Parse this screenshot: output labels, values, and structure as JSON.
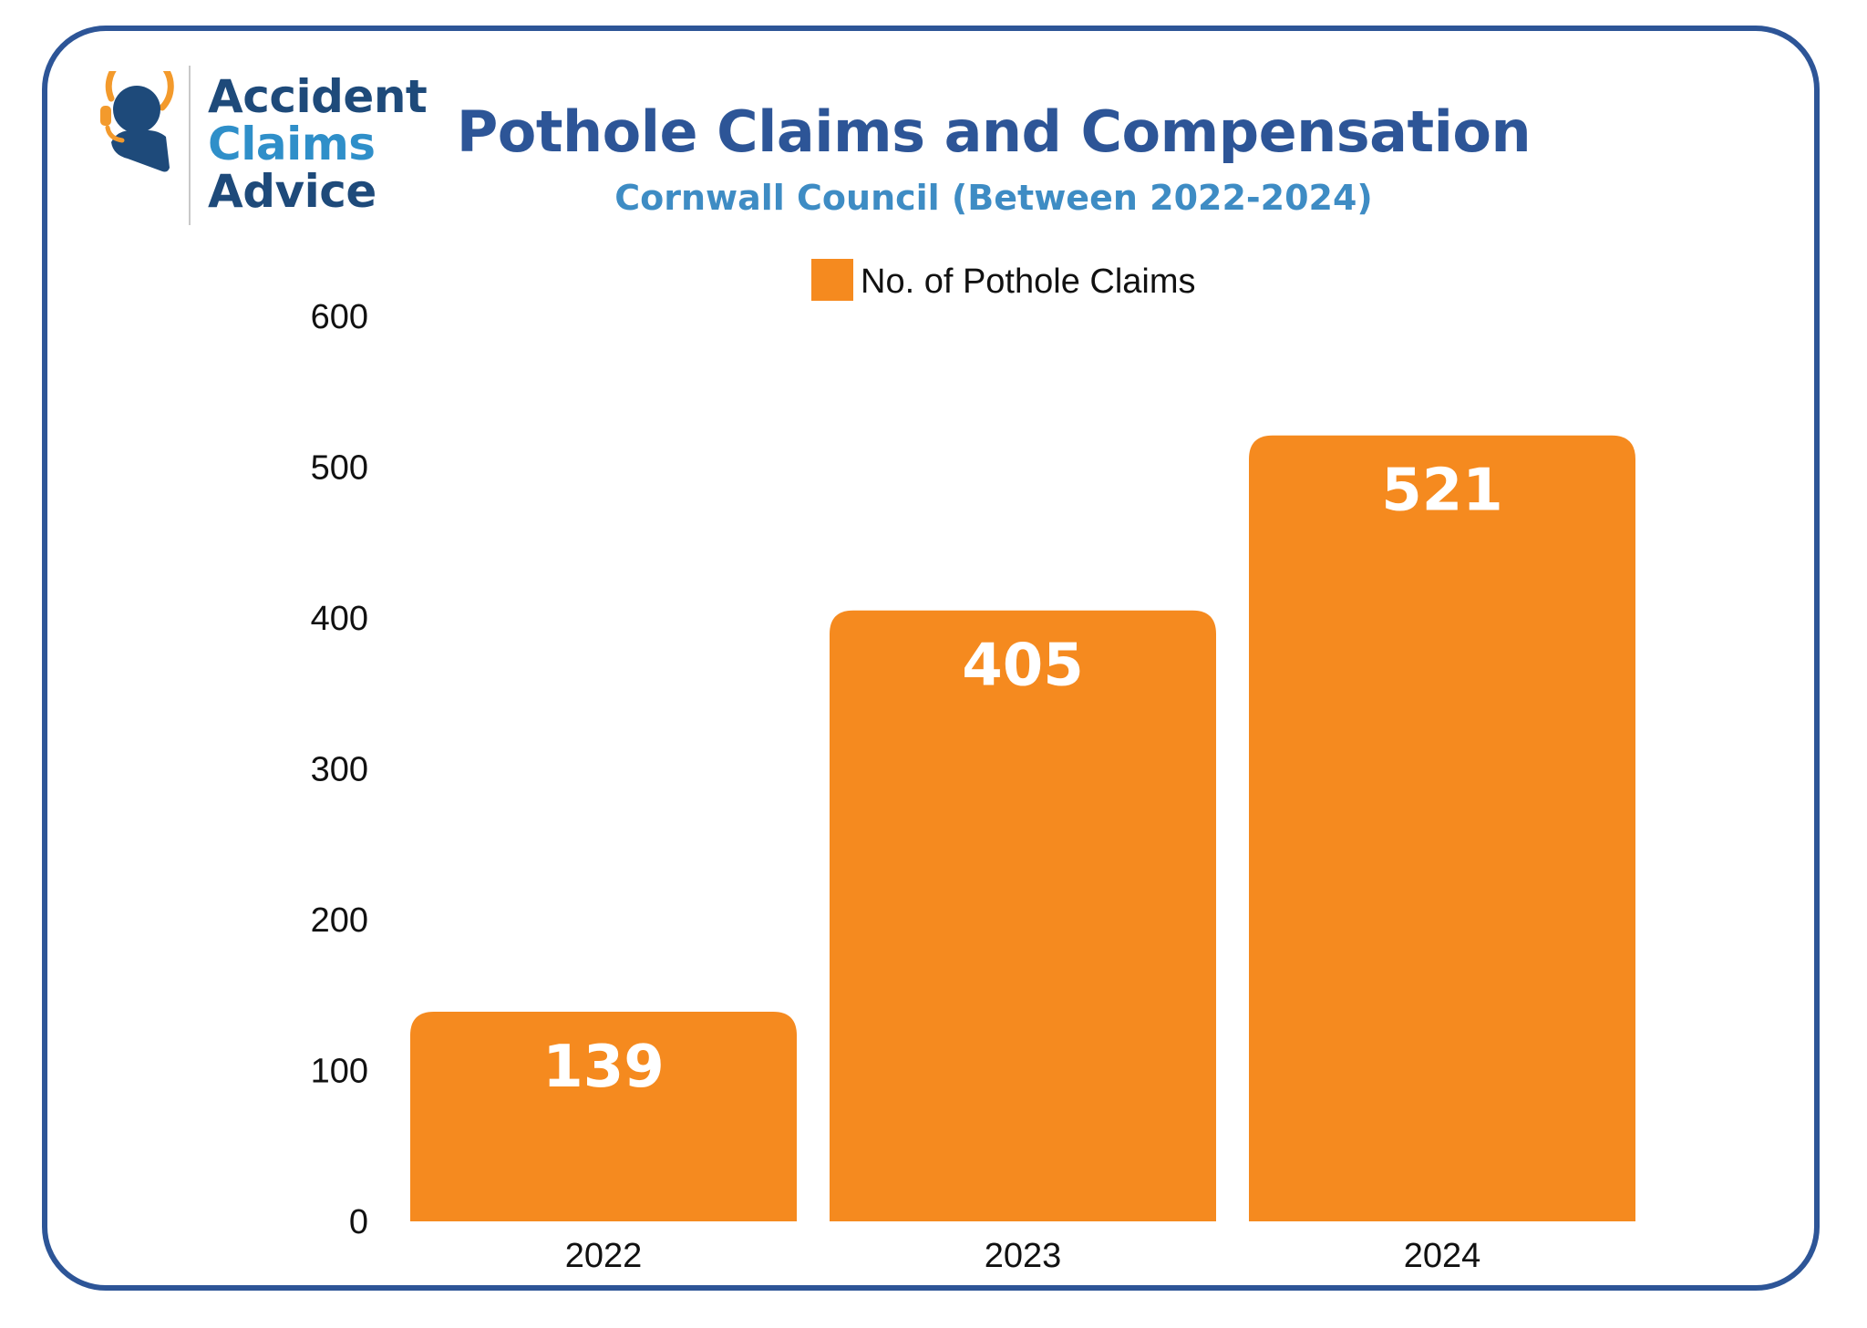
{
  "logo": {
    "word1": "Accident",
    "word2": "Claims",
    "word3": "Advice",
    "icon": "headset-person-icon",
    "colors": {
      "dark": "#1e4a7a",
      "light": "#2f8fc9",
      "accent": "#f39a2c"
    }
  },
  "frame_color": "#2d5597",
  "chart_data": {
    "type": "bar",
    "title": "Pothole Claims and Compensation",
    "subtitle": "Cornwall Council (Between 2022-2024)",
    "categories": [
      "2022",
      "2023",
      "2024"
    ],
    "series": [
      {
        "name": "No. of Pothole Claims",
        "values": [
          139,
          405,
          521
        ],
        "color": "#f58a1f"
      }
    ],
    "data_labels": [
      "139",
      "405",
      "521"
    ],
    "yticks": [
      "0",
      "100",
      "200",
      "300",
      "400",
      "500",
      "600"
    ],
    "ylim": [
      0,
      600
    ],
    "xlabel": "",
    "ylabel": "",
    "grid": false,
    "legend_position": "top-center"
  }
}
